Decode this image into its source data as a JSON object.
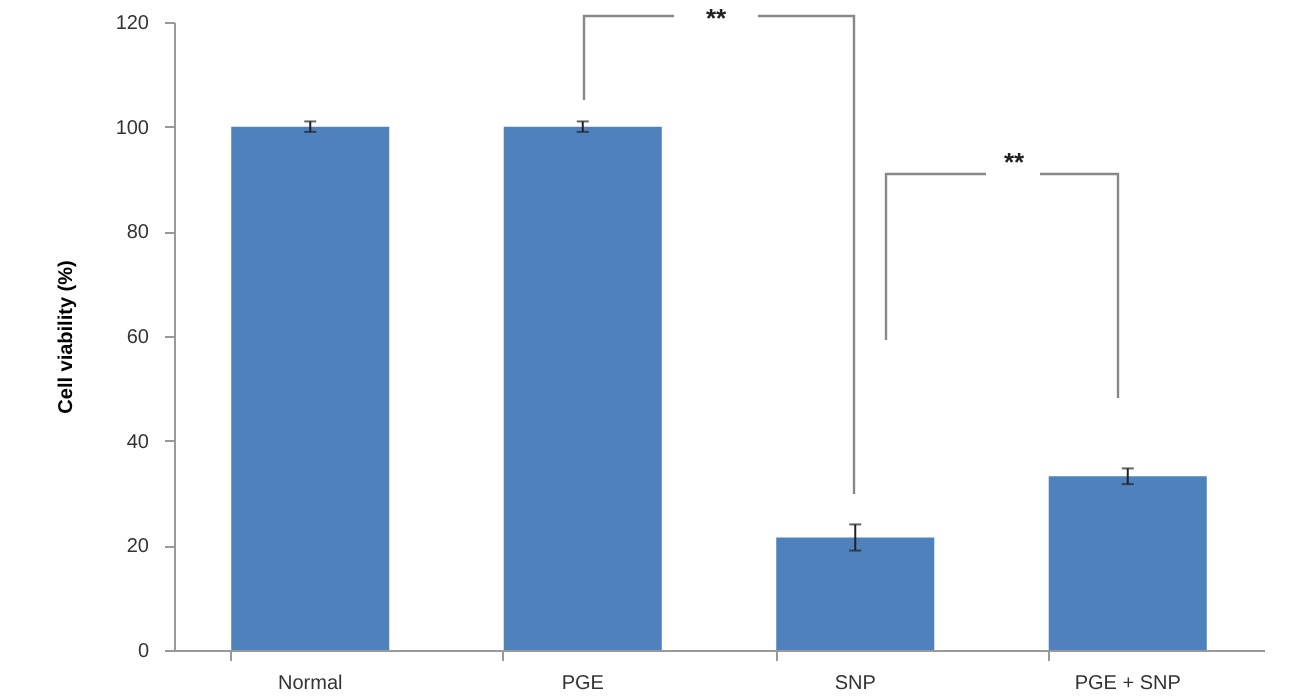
{
  "chart_data": {
    "type": "bar",
    "ylabel": "Cell viability (%)",
    "categories": [
      "Normal",
      "PGE",
      "SNP",
      "PGE + SNP"
    ],
    "values": [
      100,
      100,
      21.5,
      33.2
    ],
    "errors": [
      1,
      1,
      2.5,
      1.5
    ],
    "color": "#4f81bd",
    "ylim": [
      0,
      120
    ],
    "yticks": [
      0,
      20,
      40,
      60,
      80,
      100,
      120
    ],
    "grid": false,
    "annotations": [
      "**",
      "**"
    ]
  }
}
